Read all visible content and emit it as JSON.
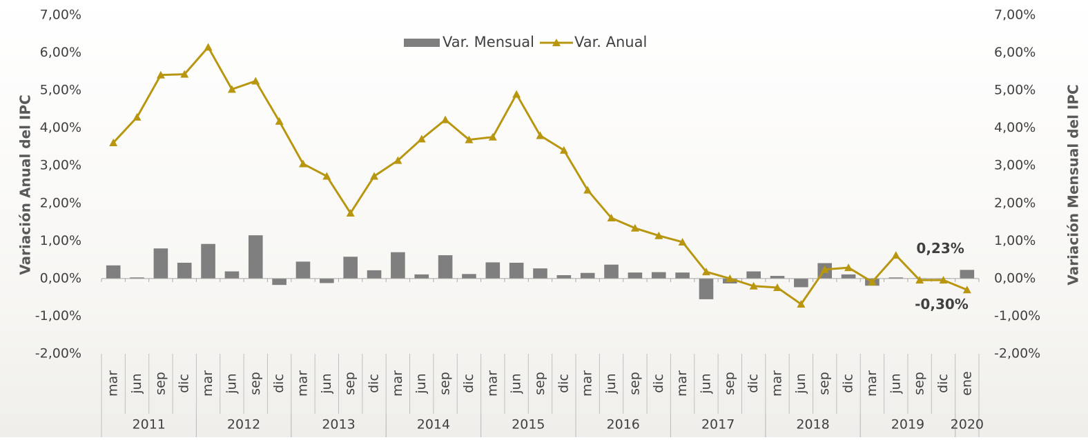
{
  "chart_data": {
    "type": "bar_line",
    "y_title": "Variación Anual del IPC",
    "y2_title": "Variación Mensual del IPC",
    "categories": [
      "mar",
      "jun",
      "sep",
      "dic",
      "mar",
      "jun",
      "sep",
      "dic",
      "mar",
      "jun",
      "sep",
      "dic",
      "mar",
      "jun",
      "sep",
      "dic",
      "mar",
      "jun",
      "sep",
      "dic",
      "mar",
      "jun",
      "sep",
      "dic",
      "mar",
      "jun",
      "sep",
      "dic",
      "mar",
      "jun",
      "sep",
      "dic",
      "mar",
      "jun",
      "sep",
      "dic",
      "ene"
    ],
    "category_groups": [
      {
        "label": "2011",
        "span": 4
      },
      {
        "label": "2012",
        "span": 4
      },
      {
        "label": "2013",
        "span": 4
      },
      {
        "label": "2014",
        "span": 4
      },
      {
        "label": "2015",
        "span": 4
      },
      {
        "label": "2016",
        "span": 4
      },
      {
        "label": "2017",
        "span": 4
      },
      {
        "label": "2018",
        "span": 4
      },
      {
        "label": "2019",
        "span": 4
      },
      {
        "label": "2020",
        "span": 1
      }
    ],
    "series": [
      {
        "name": "Var. Mensual",
        "type": "bar",
        "axis": "y2",
        "color": "#7f7f7f",
        "values": [
          0.35,
          0.03,
          0.8,
          0.42,
          0.92,
          0.19,
          1.15,
          -0.17,
          0.45,
          -0.12,
          0.58,
          0.22,
          0.7,
          0.11,
          0.62,
          0.12,
          0.43,
          0.42,
          0.27,
          0.09,
          0.15,
          0.37,
          0.16,
          0.17,
          0.16,
          -0.55,
          -0.13,
          0.19,
          0.07,
          -0.23,
          0.41,
          0.11,
          -0.19,
          0.03,
          0.01,
          0.01,
          0.23
        ]
      },
      {
        "name": "Var. Anual",
        "type": "line",
        "color": "#b8960f",
        "values": [
          3.61,
          4.29,
          5.41,
          5.43,
          6.15,
          5.03,
          5.25,
          4.18,
          3.05,
          2.72,
          1.74,
          2.72,
          3.14,
          3.71,
          4.22,
          3.69,
          3.76,
          4.9,
          3.8,
          3.41,
          2.35,
          1.61,
          1.34,
          1.14,
          0.97,
          0.18,
          0.0,
          -0.2,
          -0.24,
          -0.68,
          0.24,
          0.29,
          -0.09,
          0.62,
          -0.04,
          -0.04,
          -0.3
        ]
      }
    ],
    "annotations": [
      {
        "series": 0,
        "index": 36,
        "value": 0.23,
        "label": "0,23%"
      },
      {
        "series": 1,
        "index": 36,
        "value": -0.3,
        "label": "-0,30%"
      }
    ],
    "ylim": [
      -2,
      7
    ],
    "yticks": [
      {
        "value": -2,
        "label": "-2,00%"
      },
      {
        "value": -1,
        "label": "-1,00%"
      },
      {
        "value": 0,
        "label": "0,00%"
      },
      {
        "value": 1,
        "label": "1,00%"
      },
      {
        "value": 2,
        "label": "2,00%"
      },
      {
        "value": 3,
        "label": "3,00%"
      },
      {
        "value": 4,
        "label": "4,00%"
      },
      {
        "value": 5,
        "label": "5,00%"
      },
      {
        "value": 6,
        "label": "6,00%"
      },
      {
        "value": 7,
        "label": "7,00%"
      }
    ],
    "y2lim": [
      -2,
      7
    ],
    "y2ticks": [
      {
        "value": -2,
        "label": "-2,00%"
      },
      {
        "value": -1,
        "label": "-1,00%"
      },
      {
        "value": 0,
        "label": "0,00%"
      },
      {
        "value": 1,
        "label": "1,00%"
      },
      {
        "value": 2,
        "label": "2,00%"
      },
      {
        "value": 3,
        "label": "3,00%"
      },
      {
        "value": 4,
        "label": "4,00%"
      },
      {
        "value": 5,
        "label": "5,00%"
      },
      {
        "value": 6,
        "label": "6,00%"
      },
      {
        "value": 7,
        "label": "7,00%"
      }
    ],
    "legend": "top"
  }
}
